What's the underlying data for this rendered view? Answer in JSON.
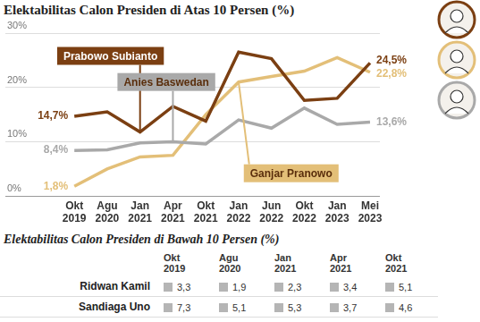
{
  "chart_data": {
    "type": "line",
    "title": "Elektabilitas Calon Presiden di Atas 10 Persen (%)",
    "categories": [
      "Okt 2019",
      "Agu 2020",
      "Jan 2021",
      "Apr 2021",
      "Okt 2021",
      "Jan 2022",
      "Jun 2022",
      "Okt 2022",
      "Jan 2023",
      "Mei 2023"
    ],
    "series": [
      {
        "name": "Prabowo Subianto",
        "color": "#7b3f12",
        "values": [
          14.7,
          15.5,
          11.8,
          16.5,
          13.8,
          26.5,
          25.3,
          17.6,
          18.0,
          24.5
        ],
        "value_labels": [
          "14,7%",
          null,
          null,
          null,
          null,
          null,
          null,
          null,
          null,
          "24,5%"
        ]
      },
      {
        "name": "Anies Baswedan",
        "color": "#a9a9a9",
        "values": [
          8.4,
          8.5,
          9.8,
          10.0,
          9.6,
          14.0,
          12.5,
          16.2,
          13.2,
          13.6
        ],
        "value_labels": [
          "8,4%",
          null,
          null,
          null,
          null,
          null,
          null,
          null,
          null,
          "13,6%"
        ]
      },
      {
        "name": "Ganjar Pranowo",
        "color": "#e3bf78",
        "values": [
          1.8,
          5.0,
          7.2,
          7.5,
          15.0,
          21.0,
          22.0,
          23.0,
          25.5,
          22.8
        ],
        "value_labels": [
          "1,8%",
          null,
          null,
          null,
          null,
          null,
          null,
          null,
          null,
          "22,8%"
        ]
      }
    ],
    "ylim": [
      0,
      30
    ],
    "yticks": [
      {
        "value": 0,
        "label": "0%"
      },
      {
        "value": 10,
        "label": "10%"
      },
      {
        "value": 20,
        "label": "20%"
      },
      {
        "value": 30,
        "label": "30%"
      }
    ],
    "grid": true,
    "data_labels": true
  },
  "table": {
    "title": "Elektabilitas Calon Presiden di Bawah 10 Persen (%)",
    "columns": [
      "Okt 2019",
      "Agu 2020",
      "Jan 2021",
      "Apr 2021",
      "Okt 2021"
    ],
    "rows": [
      [
        "Ridwan Kamil",
        "3,3",
        "1,9",
        "2,3",
        "3,4",
        "5,1"
      ],
      [
        "Sandiaga Uno",
        "7,3",
        "5,1",
        "5,3",
        "3,7",
        "4,6"
      ]
    ]
  }
}
